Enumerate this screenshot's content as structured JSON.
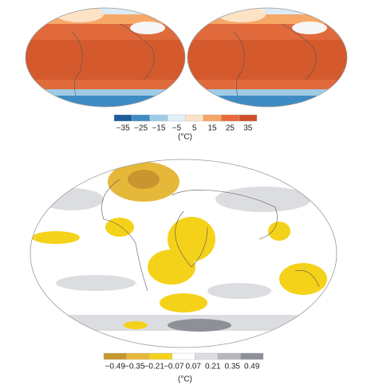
{
  "top_colorbar": {
    "ticks": [
      "−35",
      "−25",
      "−15",
      "−5",
      "5",
      "15",
      "25",
      "35"
    ],
    "colors": [
      "#1c5d9c",
      "#3f8cc4",
      "#9fcbe5",
      "#e2eff7",
      "#fde3c6",
      "#f6a565",
      "#e8693b",
      "#cf4f26"
    ],
    "unit": "(°C)"
  },
  "bottom_colorbar": {
    "ticks": [
      "−0.49",
      "−0.35",
      "−0.21",
      "−0.07",
      "0.07",
      "0.21",
      "0.35",
      "0.49"
    ],
    "colors": [
      "#c8962e",
      "#e6b83a",
      "#f5d21a",
      "#ffffff",
      "#dcdde0",
      "#b5b7bc",
      "#8d9096"
    ],
    "unit": "(°C)"
  }
}
